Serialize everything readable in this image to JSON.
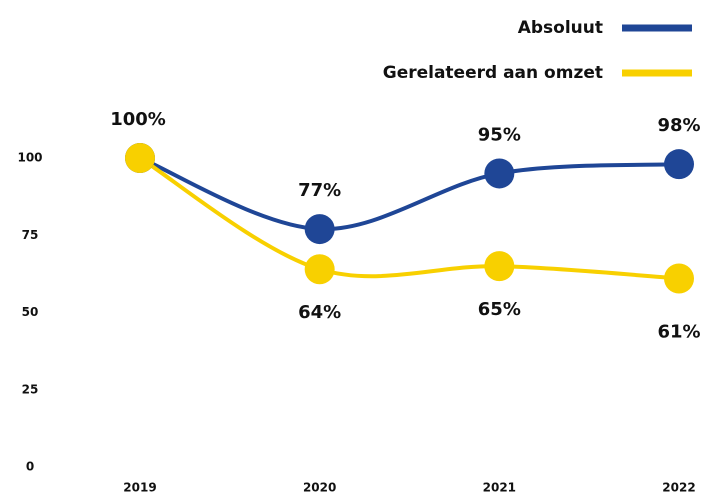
{
  "chart_data": {
    "type": "line",
    "categories": [
      "2019",
      "2020",
      "2021",
      "2022"
    ],
    "series": [
      {
        "name": "Absoluut",
        "color": "#1f4696",
        "values": [
          100,
          77,
          95,
          98
        ],
        "value_labels": [
          "100%",
          "77%",
          "95%",
          "98%"
        ]
      },
      {
        "name": "Gerelateerd aan omzet",
        "color": "#f8d000",
        "values": [
          100,
          64,
          65,
          61
        ],
        "value_labels": [
          null,
          "64%",
          "65%",
          "61%"
        ]
      }
    ],
    "ylim": [
      0,
      100
    ],
    "yticks": [
      0,
      25,
      50,
      75,
      100
    ],
    "grid": false,
    "legend": "top-right"
  }
}
